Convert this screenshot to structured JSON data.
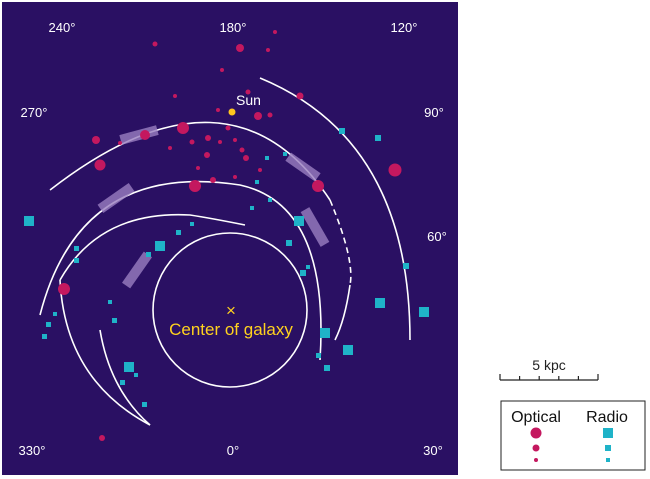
{
  "diagram": {
    "colors": {
      "background": "#2a1063",
      "optical": "#c4185f",
      "radio": "#1fb3c8",
      "arms": "#ffffff",
      "bars": "#9a7fc1",
      "sun": "#ffc61e",
      "center": "#ffd21e"
    },
    "longitude_labels": [
      "240°",
      "180°",
      "120°",
      "270°",
      "90°",
      "60°",
      "330°",
      "0°",
      "30°"
    ],
    "sun_label": "Sun",
    "center_marker": "×",
    "center_label": "Center of galaxy",
    "scale_bar_label": "5 kpc",
    "legend": {
      "optical_label": "Optical",
      "radio_label": "Radio"
    }
  }
}
